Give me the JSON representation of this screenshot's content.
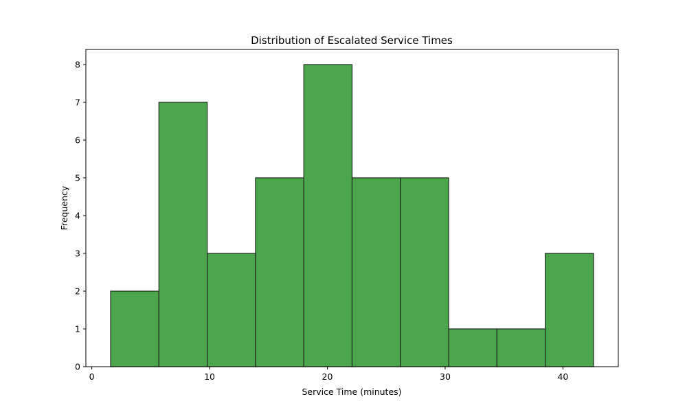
{
  "chart_data": {
    "type": "bar",
    "subtype": "histogram",
    "title": "Distribution of Escalated Service Times",
    "xlabel": "Service Time (minutes)",
    "ylabel": "Frequency",
    "bin_edges": [
      1.6,
      5.7,
      9.8,
      13.9,
      18.0,
      22.1,
      26.2,
      30.3,
      34.4,
      38.5,
      42.6
    ],
    "values": [
      2,
      7,
      3,
      5,
      8,
      5,
      5,
      1,
      1,
      3
    ],
    "xlim": [
      -0.5,
      44.7
    ],
    "ylim": [
      0,
      8.4
    ],
    "xticks": [
      0,
      10,
      20,
      30,
      40
    ],
    "yticks": [
      0,
      1,
      2,
      3,
      4,
      5,
      6,
      7,
      8
    ],
    "grid": false,
    "bar_color": "#4ca64c",
    "edge_color": "#1e2a1e"
  }
}
